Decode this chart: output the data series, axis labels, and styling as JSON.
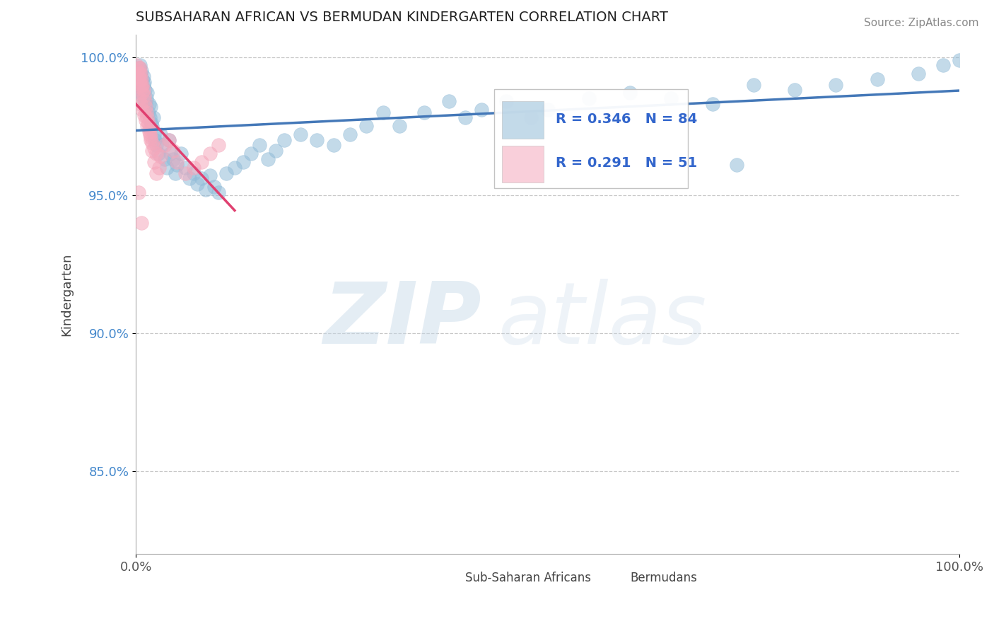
{
  "title": "SUBSAHARAN AFRICAN VS BERMUDAN KINDERGARTEN CORRELATION CHART",
  "source_text": "Source: ZipAtlas.com",
  "ylabel": "Kindergarten",
  "xlim": [
    0.0,
    1.0
  ],
  "ylim": [
    0.82,
    1.008
  ],
  "yticks": [
    0.85,
    0.9,
    0.95,
    1.0
  ],
  "ytick_labels": [
    "85.0%",
    "90.0%",
    "95.0%",
    "100.0%"
  ],
  "xtick_labels": [
    "0.0%",
    "100.0%"
  ],
  "xticks": [
    0.0,
    1.0
  ],
  "legend_r_blue": "R = 0.346",
  "legend_n_blue": "N = 84",
  "legend_r_pink": "R = 0.291",
  "legend_n_pink": "N = 51",
  "legend_label_blue": "Sub-Saharan Africans",
  "legend_label_pink": "Bermudans",
  "blue_color": "#92bcd8",
  "pink_color": "#f5a8bc",
  "trend_blue_color": "#4478b8",
  "trend_pink_color": "#e04070",
  "watermark_zip": "ZIP",
  "watermark_atlas": "atlas",
  "blue_x": [
    0.002,
    0.003,
    0.004,
    0.004,
    0.005,
    0.005,
    0.006,
    0.006,
    0.007,
    0.007,
    0.008,
    0.008,
    0.009,
    0.009,
    0.01,
    0.01,
    0.011,
    0.012,
    0.013,
    0.014,
    0.015,
    0.016,
    0.017,
    0.018,
    0.019,
    0.02,
    0.021,
    0.022,
    0.023,
    0.025,
    0.027,
    0.03,
    0.032,
    0.035,
    0.038,
    0.04,
    0.042,
    0.045,
    0.048,
    0.05,
    0.055,
    0.06,
    0.065,
    0.07,
    0.075,
    0.08,
    0.085,
    0.09,
    0.095,
    0.1,
    0.11,
    0.12,
    0.13,
    0.14,
    0.15,
    0.16,
    0.17,
    0.18,
    0.2,
    0.22,
    0.24,
    0.26,
    0.28,
    0.3,
    0.32,
    0.35,
    0.38,
    0.4,
    0.42,
    0.45,
    0.48,
    0.5,
    0.55,
    0.6,
    0.65,
    0.7,
    0.75,
    0.8,
    0.85,
    0.9,
    0.95,
    0.98,
    1.0,
    0.73
  ],
  "blue_y": [
    0.99,
    0.993,
    0.988,
    0.996,
    0.991,
    0.997,
    0.989,
    0.994,
    0.987,
    0.995,
    0.992,
    0.986,
    0.99,
    0.993,
    0.984,
    0.991,
    0.988,
    0.983,
    0.985,
    0.987,
    0.98,
    0.983,
    0.978,
    0.982,
    0.976,
    0.975,
    0.978,
    0.972,
    0.97,
    0.968,
    0.965,
    0.972,
    0.968,
    0.963,
    0.96,
    0.97,
    0.965,
    0.963,
    0.958,
    0.961,
    0.965,
    0.96,
    0.956,
    0.958,
    0.954,
    0.956,
    0.952,
    0.957,
    0.953,
    0.951,
    0.958,
    0.96,
    0.962,
    0.965,
    0.968,
    0.963,
    0.966,
    0.97,
    0.972,
    0.97,
    0.968,
    0.972,
    0.975,
    0.98,
    0.975,
    0.98,
    0.984,
    0.978,
    0.981,
    0.984,
    0.978,
    0.981,
    0.985,
    0.987,
    0.985,
    0.983,
    0.99,
    0.988,
    0.99,
    0.992,
    0.994,
    0.997,
    0.999,
    0.961
  ],
  "pink_x": [
    0.001,
    0.002,
    0.003,
    0.003,
    0.004,
    0.004,
    0.005,
    0.005,
    0.006,
    0.006,
    0.007,
    0.007,
    0.008,
    0.008,
    0.009,
    0.01,
    0.011,
    0.012,
    0.013,
    0.014,
    0.015,
    0.016,
    0.017,
    0.018,
    0.02,
    0.022,
    0.025,
    0.028,
    0.03,
    0.035,
    0.04,
    0.045,
    0.05,
    0.06,
    0.07,
    0.08,
    0.09,
    0.1,
    0.004,
    0.006,
    0.008,
    0.01,
    0.012,
    0.014,
    0.016,
    0.018,
    0.02,
    0.022,
    0.025,
    0.003,
    0.007
  ],
  "pink_y": [
    0.997,
    0.995,
    0.996,
    0.993,
    0.994,
    0.991,
    0.996,
    0.992,
    0.994,
    0.99,
    0.992,
    0.989,
    0.99,
    0.987,
    0.988,
    0.986,
    0.984,
    0.982,
    0.98,
    0.978,
    0.976,
    0.974,
    0.972,
    0.97,
    0.966,
    0.962,
    0.958,
    0.96,
    0.964,
    0.968,
    0.97,
    0.966,
    0.962,
    0.958,
    0.96,
    0.962,
    0.965,
    0.968,
    0.985,
    0.983,
    0.981,
    0.979,
    0.977,
    0.975,
    0.973,
    0.971,
    0.969,
    0.967,
    0.965,
    0.951,
    0.94
  ]
}
